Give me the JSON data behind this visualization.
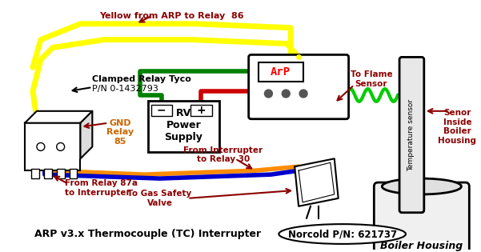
{
  "bg_color": "#ffffff",
  "title_text": "ARP v3.x Thermocouple (TC) Interrupter",
  "norcold_text": "Norcold P/N: 621737",
  "relay_label1": "Clamped Relay Tyco",
  "relay_label2": "P/N 0-1432793",
  "gnd_label": "GND\nRelay\n85",
  "power_label": "RV\nPower\nSupply",
  "boiler_label": "Boiler Housing",
  "temp_label": "Temperature sensor",
  "sensor_label": "Senor\nInside\nBoiler\nHousing",
  "yellow_label": "Yellow from ARP to Relay  86",
  "flame_label": "To Flame\nSensor",
  "interrupter_label": "From Interrupter\nto Relay 30",
  "relay87a_label": "From Relay 87a\nto Interrupter",
  "gas_label": "To Gas Safety\nValve",
  "arp_text": "ArP",
  "wire_yellow": "#ffff00",
  "wire_green": "#008000",
  "wire_red": "#cc0000",
  "wire_orange": "#ff8c00",
  "wire_blue": "#0000cc",
  "wire_green2": "#00cc00",
  "dark_red": "#8b0000",
  "orange_text": "#cc6600",
  "label_color": "#000000",
  "box_border": "#000000"
}
